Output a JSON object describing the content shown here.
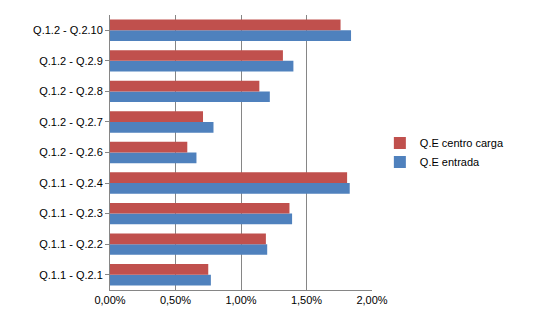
{
  "chart_data": {
    "type": "bar",
    "orientation": "horizontal",
    "categories": [
      "Q.1.1 - Q.2.1",
      "Q.1.1 - Q.2.2",
      "Q.1.1 - Q.2.3",
      "Q.1.1 - Q.2.4",
      "Q.1.2 - Q.2.6",
      "Q.1.2 - Q.2.7",
      "Q.1.2 - Q.2.8",
      "Q.1.2 - Q.2.9",
      "Q.1.2 - Q.2.10"
    ],
    "series": [
      {
        "name": "Q.E entrada",
        "color": "#4f81bd",
        "values": [
          0.77,
          1.2,
          1.39,
          1.83,
          0.66,
          0.79,
          1.22,
          1.4,
          1.84
        ]
      },
      {
        "name": "Q.E centro carga",
        "color": "#c0504d",
        "values": [
          0.75,
          1.19,
          1.37,
          1.81,
          0.59,
          0.71,
          1.14,
          1.32,
          1.76
        ]
      }
    ],
    "xlim": [
      0,
      2
    ],
    "xticks": [
      {
        "value": 0,
        "label": "0,00%"
      },
      {
        "value": 0.5,
        "label": "0,50%"
      },
      {
        "value": 1,
        "label": "1,00%"
      },
      {
        "value": 1.5,
        "label": "1,50%"
      },
      {
        "value": 2,
        "label": "2,00%"
      }
    ],
    "grid": true,
    "legend": "right"
  }
}
